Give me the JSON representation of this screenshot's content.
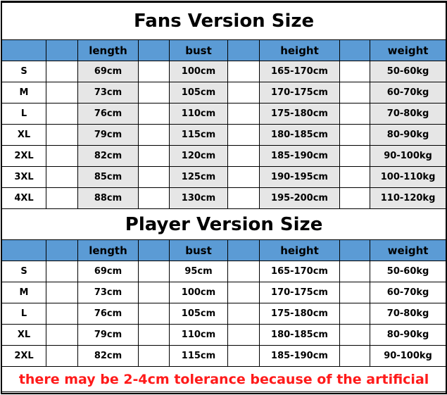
{
  "fans": {
    "title": "Fans Version Size",
    "headers": [
      "",
      "",
      "length",
      "",
      "bust",
      "",
      "height",
      "",
      "weight"
    ],
    "rows": [
      [
        "S",
        "69cm",
        "100cm",
        "165-170cm",
        "50-60kg"
      ],
      [
        "M",
        "73cm",
        "105cm",
        "170-175cm",
        "60-70kg"
      ],
      [
        "L",
        "76cm",
        "110cm",
        "175-180cm",
        "70-80kg"
      ],
      [
        "XL",
        "79cm",
        "115cm",
        "180-185cm",
        "80-90kg"
      ],
      [
        "2XL",
        "82cm",
        "120cm",
        "185-190cm",
        "90-100kg"
      ],
      [
        "3XL",
        "85cm",
        "125cm",
        "190-195cm",
        "100-110kg"
      ],
      [
        "4XL",
        "88cm",
        "130cm",
        "195-200cm",
        "110-120kg"
      ]
    ]
  },
  "player": {
    "title": "Player Version Size",
    "headers": [
      "",
      "",
      "length",
      "",
      "bust",
      "",
      "height",
      "",
      "weight"
    ],
    "rows": [
      [
        "S",
        "69cm",
        "95cm",
        "165-170cm",
        "50-60kg"
      ],
      [
        "M",
        "73cm",
        "100cm",
        "170-175cm",
        "60-70kg"
      ],
      [
        "L",
        "76cm",
        "105cm",
        "175-180cm",
        "70-80kg"
      ],
      [
        "XL",
        "79cm",
        "110cm",
        "180-185cm",
        "80-90kg"
      ],
      [
        "2XL",
        "82cm",
        "115cm",
        "185-190cm",
        "90-100kg"
      ]
    ]
  },
  "note": "there may be 2-4cm tolerance because of the artificial",
  "colors": {
    "header": "#5b9bd5",
    "shaded": "#e6e6e6",
    "note": "#ff1a1a"
  }
}
